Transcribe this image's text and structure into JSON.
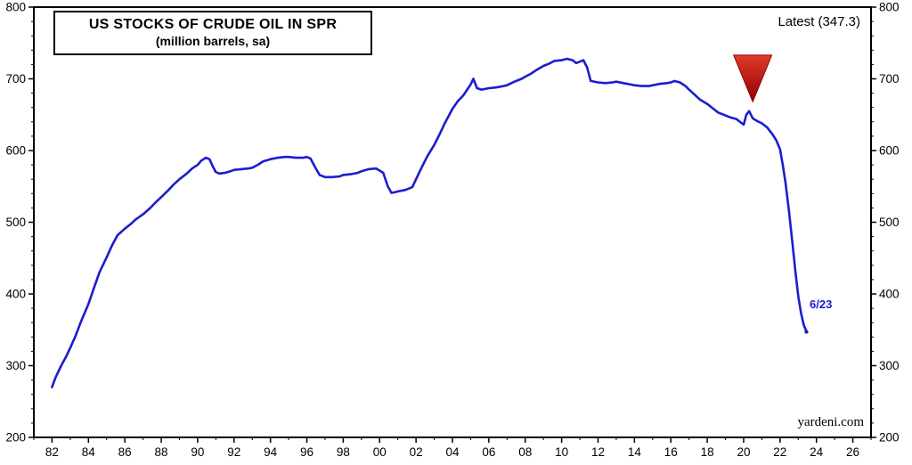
{
  "page": {
    "title_line1": "US STOCKS OF CRUDE OIL IN SPR",
    "title_line2": "(million barrels, sa)",
    "latest_label": "Latest (347.3)",
    "endpoint_label": "6/23",
    "watermark": "yardeni.com"
  },
  "colors": {
    "line": "#1c1ccf",
    "frame": "#000000",
    "arrow_fill": "#cf1515",
    "arrow_dark": "#8f0000",
    "background": "#ffffff"
  },
  "chart_data": {
    "type": "line",
    "title": "US STOCKS OF CRUDE OIL IN SPR",
    "subtitle": "(million barrels, sa)",
    "xlabel": "",
    "ylabel": "",
    "xlim": [
      1981,
      2027
    ],
    "ylim": [
      200,
      800
    ],
    "grid": false,
    "legend": false,
    "x_tick_labels": [
      "82",
      "84",
      "86",
      "88",
      "90",
      "92",
      "94",
      "96",
      "98",
      "00",
      "02",
      "04",
      "06",
      "08",
      "10",
      "12",
      "14",
      "16",
      "18",
      "20",
      "22",
      "24",
      "26"
    ],
    "x_tick_start_year": 1982,
    "x_tick_step": 2,
    "x_minor_step": 1,
    "y_tick_labels": [
      "200",
      "300",
      "400",
      "500",
      "600",
      "700",
      "800"
    ],
    "y_major_step": 100,
    "y_minor_step": 20,
    "y_axis_sides": "both",
    "series": [
      {
        "name": "US stocks of crude oil in SPR (million barrels, sa)",
        "color": "#1c1ccf",
        "points": [
          [
            1982,
            270
          ],
          [
            1982.2,
            284
          ],
          [
            1982.5,
            300
          ],
          [
            1982.8,
            314
          ],
          [
            1983,
            325
          ],
          [
            1983.3,
            342
          ],
          [
            1983.6,
            362
          ],
          [
            1984,
            386
          ],
          [
            1984.3,
            408
          ],
          [
            1984.6,
            430
          ],
          [
            1985,
            451
          ],
          [
            1985.3,
            468
          ],
          [
            1985.6,
            482
          ],
          [
            1986,
            491
          ],
          [
            1986.3,
            497
          ],
          [
            1986.6,
            504
          ],
          [
            1987,
            511
          ],
          [
            1987.4,
            520
          ],
          [
            1987.7,
            528
          ],
          [
            1988,
            535
          ],
          [
            1988.4,
            545
          ],
          [
            1988.7,
            553
          ],
          [
            1989,
            560
          ],
          [
            1989.4,
            568
          ],
          [
            1989.7,
            575
          ],
          [
            1990,
            580
          ],
          [
            1990.2,
            586
          ],
          [
            1990.45,
            590
          ],
          [
            1990.65,
            588
          ],
          [
            1990.85,
            577
          ],
          [
            1991,
            570
          ],
          [
            1991.2,
            568
          ],
          [
            1991.5,
            569
          ],
          [
            1991.8,
            571
          ],
          [
            1992,
            573
          ],
          [
            1992.4,
            574
          ],
          [
            1992.8,
            575
          ],
          [
            1993,
            576
          ],
          [
            1993.3,
            580
          ],
          [
            1993.6,
            585
          ],
          [
            1994,
            588
          ],
          [
            1994.4,
            590
          ],
          [
            1994.8,
            591
          ],
          [
            1995,
            591
          ],
          [
            1995.4,
            590
          ],
          [
            1995.8,
            590
          ],
          [
            1996,
            591
          ],
          [
            1996.2,
            589
          ],
          [
            1996.45,
            577
          ],
          [
            1996.7,
            566
          ],
          [
            1997,
            563
          ],
          [
            1997.4,
            563
          ],
          [
            1997.8,
            564
          ],
          [
            1998,
            566
          ],
          [
            1998.4,
            567
          ],
          [
            1998.8,
            569
          ],
          [
            1999,
            571
          ],
          [
            1999.4,
            574
          ],
          [
            1999.8,
            575
          ],
          [
            2000,
            572
          ],
          [
            2000.2,
            569
          ],
          [
            2000.45,
            550
          ],
          [
            2000.65,
            541
          ],
          [
            2000.85,
            542
          ],
          [
            2001,
            543
          ],
          [
            2001.4,
            545
          ],
          [
            2001.8,
            549
          ],
          [
            2002,
            560
          ],
          [
            2002.3,
            576
          ],
          [
            2002.6,
            591
          ],
          [
            2003,
            608
          ],
          [
            2003.3,
            623
          ],
          [
            2003.6,
            639
          ],
          [
            2004,
            658
          ],
          [
            2004.3,
            669
          ],
          [
            2004.6,
            677
          ],
          [
            2005,
            692
          ],
          [
            2005.15,
            700
          ],
          [
            2005.35,
            687
          ],
          [
            2005.6,
            685
          ],
          [
            2006,
            687
          ],
          [
            2006.4,
            688
          ],
          [
            2006.8,
            690
          ],
          [
            2007,
            691
          ],
          [
            2007.4,
            696
          ],
          [
            2007.8,
            700
          ],
          [
            2008,
            703
          ],
          [
            2008.3,
            707
          ],
          [
            2008.6,
            712
          ],
          [
            2009,
            718
          ],
          [
            2009.3,
            721
          ],
          [
            2009.6,
            725
          ],
          [
            2010,
            726
          ],
          [
            2010.3,
            728
          ],
          [
            2010.6,
            726
          ],
          [
            2010.8,
            722
          ],
          [
            2011,
            724
          ],
          [
            2011.2,
            726
          ],
          [
            2011.4,
            716
          ],
          [
            2011.6,
            697
          ],
          [
            2012,
            695
          ],
          [
            2012.4,
            694
          ],
          [
            2012.8,
            695
          ],
          [
            2013,
            696
          ],
          [
            2013.4,
            694
          ],
          [
            2013.8,
            692
          ],
          [
            2014,
            691
          ],
          [
            2014.4,
            690
          ],
          [
            2014.8,
            690
          ],
          [
            2015,
            691
          ],
          [
            2015.4,
            693
          ],
          [
            2015.8,
            694
          ],
          [
            2016,
            695
          ],
          [
            2016.2,
            697
          ],
          [
            2016.5,
            695
          ],
          [
            2016.8,
            690
          ],
          [
            2017,
            685
          ],
          [
            2017.3,
            678
          ],
          [
            2017.6,
            671
          ],
          [
            2018,
            665
          ],
          [
            2018.3,
            659
          ],
          [
            2018.6,
            653
          ],
          [
            2019,
            649
          ],
          [
            2019.3,
            646
          ],
          [
            2019.6,
            644
          ],
          [
            2020,
            636
          ],
          [
            2020.15,
            650
          ],
          [
            2020.3,
            655
          ],
          [
            2020.5,
            645
          ],
          [
            2020.75,
            641
          ],
          [
            2021,
            638
          ],
          [
            2021.3,
            632
          ],
          [
            2021.6,
            622
          ],
          [
            2021.8,
            614
          ],
          [
            2022,
            602
          ],
          [
            2022.15,
            580
          ],
          [
            2022.3,
            555
          ],
          [
            2022.5,
            514
          ],
          [
            2022.7,
            467
          ],
          [
            2022.85,
            430
          ],
          [
            2023,
            397
          ],
          [
            2023.15,
            374
          ],
          [
            2023.3,
            357
          ],
          [
            2023.45,
            347.3
          ]
        ]
      }
    ],
    "annotations": {
      "latest_value": 347.3,
      "latest_text": "Latest (347.3)",
      "endpoint": {
        "x": 2023.45,
        "y": 347.3,
        "label": "6/23"
      },
      "arrow_triangle_down": {
        "x_center": 2020.5,
        "x_half_width_years": 1.05,
        "y_top_value": 733,
        "y_apex_value": 668
      }
    }
  }
}
